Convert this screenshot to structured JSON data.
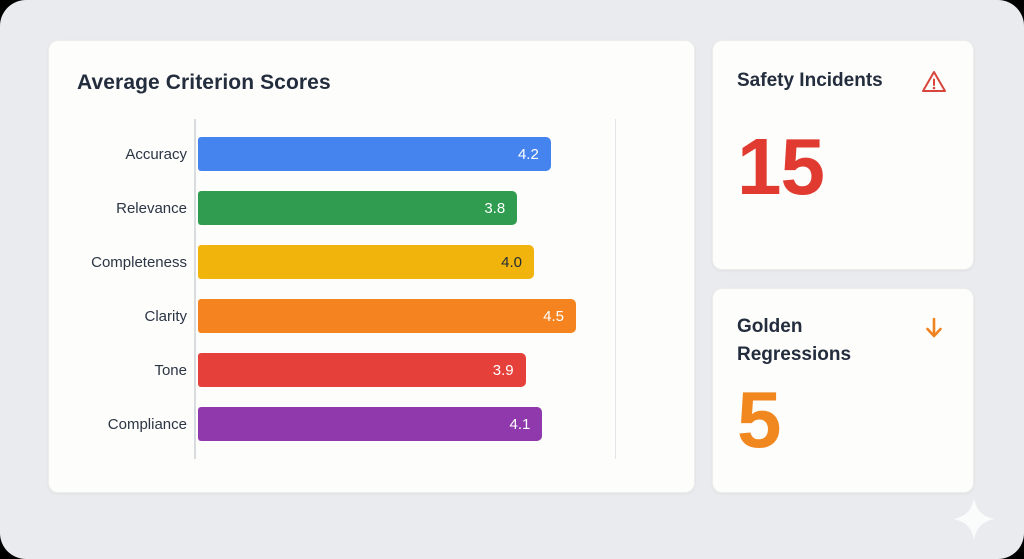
{
  "chart_card": {
    "title": "Average Criterion Scores"
  },
  "chart_data": {
    "type": "bar",
    "orientation": "horizontal",
    "title": "Average Criterion Scores",
    "categories": [
      "Accuracy",
      "Relevance",
      "Completeness",
      "Clarity",
      "Tone",
      "Compliance"
    ],
    "values": [
      4.2,
      3.8,
      4.0,
      4.5,
      3.9,
      4.1
    ],
    "value_labels": [
      "4.2",
      "3.8",
      "4.0",
      "4.5",
      "3.9",
      "4.1"
    ],
    "bar_colors": [
      "#4583EE",
      "#2F9C50",
      "#F0B40C",
      "#F5831F",
      "#E5413A",
      "#9039AD"
    ],
    "value_text_colors": [
      "#FFFFFF",
      "#FFFFFF",
      "#222B3A",
      "#FFFFFF",
      "#FFFFFF",
      "#FFFFFF"
    ],
    "xlim": [
      0,
      5
    ],
    "gridline_at": 5,
    "legend": "none",
    "xlabel": "",
    "ylabel": ""
  },
  "safety_card": {
    "title": "Safety Incidents",
    "value": "15",
    "value_color": "#E03A31",
    "icon": "warning-triangle-icon",
    "icon_color": "#D8453C"
  },
  "regressions_card": {
    "title": "Golden Regressions",
    "value": "5",
    "value_color": "#F0871F",
    "icon": "arrow-down-icon",
    "icon_color": "#F0831F"
  }
}
